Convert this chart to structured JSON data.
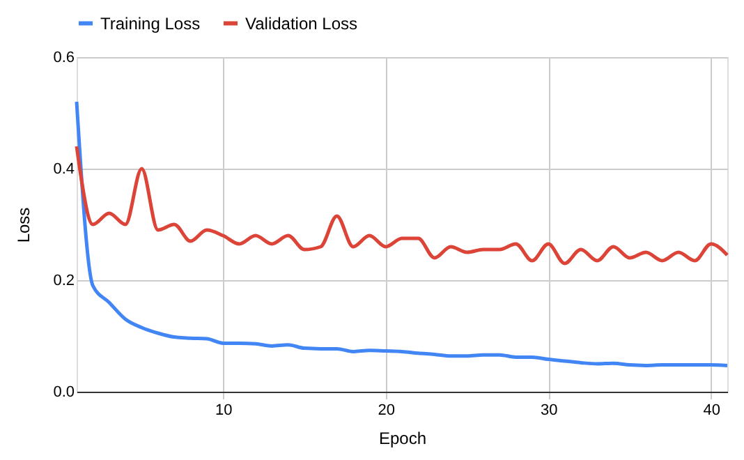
{
  "chart_data": {
    "type": "line",
    "xlabel": "Epoch",
    "ylabel": "Loss",
    "x": [
      1,
      2,
      3,
      4,
      5,
      6,
      7,
      8,
      9,
      10,
      11,
      12,
      13,
      14,
      15,
      16,
      17,
      18,
      19,
      20,
      21,
      22,
      23,
      24,
      25,
      26,
      27,
      28,
      29,
      30,
      31,
      32,
      33,
      34,
      35,
      36,
      37,
      38,
      39,
      40,
      41
    ],
    "series": [
      {
        "name": "Training Loss",
        "color": "#4285f4",
        "values": [
          0.52,
          0.19,
          0.16,
          0.13,
          0.115,
          0.105,
          0.098,
          0.096,
          0.095,
          0.087,
          0.087,
          0.086,
          0.082,
          0.084,
          0.078,
          0.077,
          0.077,
          0.072,
          0.074,
          0.073,
          0.072,
          0.069,
          0.067,
          0.064,
          0.064,
          0.066,
          0.066,
          0.062,
          0.062,
          0.058,
          0.055,
          0.052,
          0.05,
          0.051,
          0.048,
          0.047,
          0.048,
          0.048,
          0.048,
          0.048,
          0.047
        ]
      },
      {
        "name": "Validation Loss",
        "color": "#db4437",
        "values": [
          0.44,
          0.3,
          0.32,
          0.3,
          0.4,
          0.29,
          0.3,
          0.27,
          0.29,
          0.28,
          0.265,
          0.28,
          0.265,
          0.28,
          0.255,
          0.26,
          0.315,
          0.26,
          0.28,
          0.26,
          0.275,
          0.275,
          0.24,
          0.26,
          0.25,
          0.255,
          0.255,
          0.265,
          0.235,
          0.265,
          0.23,
          0.255,
          0.235,
          0.26,
          0.24,
          0.25,
          0.235,
          0.25,
          0.235,
          0.265,
          0.245
        ]
      }
    ],
    "xlim": [
      1,
      41
    ],
    "xticks": [
      10,
      20,
      30,
      40
    ],
    "ylim": [
      0,
      0.6
    ],
    "yticks": [
      {
        "value": 0,
        "label": "0.0"
      },
      0.2,
      0.4,
      0.6
    ],
    "grid": true,
    "legend": "top",
    "marker": "none",
    "line_style": "solid"
  }
}
